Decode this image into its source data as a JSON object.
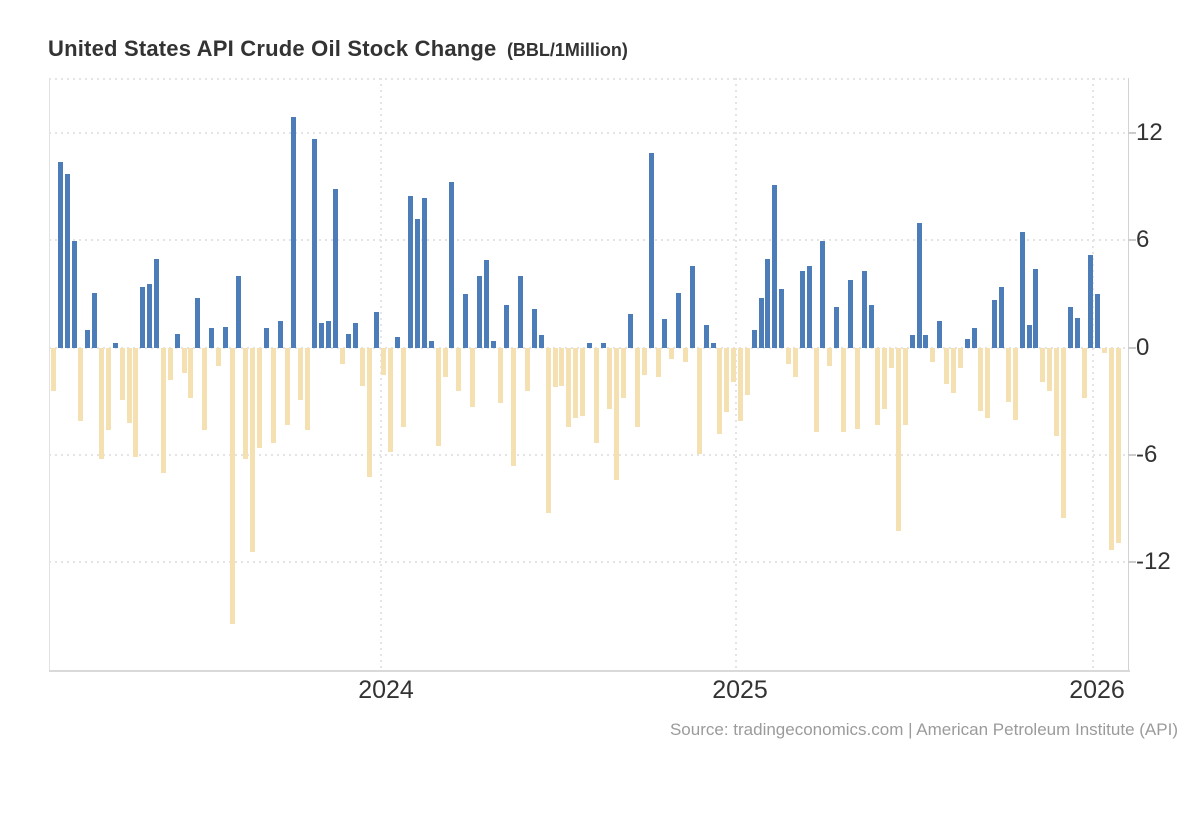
{
  "title": "United States API Crude Oil Stock Change",
  "title_suffix": "(BBL/1Million)",
  "source": "Source: tradingeconomics.com | American Petroleum Institute (API)",
  "colors": {
    "positive_bar": "#4d7db9",
    "negative_bar": "#f4e0b0",
    "grid": "#e4e4e4",
    "axis_text": "#333333",
    "source_text": "#9b9b9b"
  },
  "chart_data": {
    "type": "bar",
    "title": "United States API Crude Oil Stock Change (BBL/1Million)",
    "xlabel": "",
    "ylabel": "BBL/1Million",
    "frequency": "weekly",
    "ylim": [
      -16,
      14
    ],
    "grid": "dotted",
    "legend_position": "none",
    "y_ticks": [
      "12",
      "6",
      "0",
      "-6",
      "-12"
    ],
    "y_tick_values": [
      12,
      6,
      0,
      -6,
      -12
    ],
    "x_ticks": [
      "2024",
      "2025",
      "2026"
    ],
    "values": [
      -2.4,
      10.4,
      9.7,
      6.0,
      -4.1,
      1.0,
      3.1,
      -6.2,
      -4.6,
      0.3,
      -2.9,
      -4.2,
      -6.1,
      3.4,
      3.6,
      5.0,
      -7.0,
      -1.8,
      0.8,
      -1.4,
      -2.8,
      2.8,
      -4.6,
      1.1,
      -1.0,
      1.2,
      -15.4,
      4.0,
      -6.2,
      -11.4,
      -5.6,
      1.1,
      -5.3,
      1.5,
      -4.3,
      12.9,
      -2.9,
      -4.6,
      11.7,
      1.4,
      1.5,
      8.9,
      -0.9,
      0.8,
      1.4,
      -2.1,
      -7.2,
      2.0,
      -1.5,
      -5.8,
      0.6,
      -4.4,
      8.5,
      7.2,
      8.4,
      0.4,
      -5.5,
      -1.6,
      9.3,
      -2.4,
      3.0,
      -3.3,
      4.0,
      4.9,
      0.4,
      -3.1,
      2.4,
      -6.6,
      4.0,
      -2.4,
      2.2,
      0.7,
      -9.2,
      -2.2,
      -2.1,
      -4.4,
      -3.9,
      -3.8,
      0.3,
      -5.3,
      0.3,
      -3.4,
      -7.4,
      -2.8,
      1.9,
      -4.4,
      -1.5,
      10.9,
      -1.6,
      1.6,
      -0.6,
      3.1,
      -0.8,
      4.6,
      -5.9,
      1.3,
      0.3,
      -4.8,
      -3.6,
      -1.9,
      -4.1,
      -2.6,
      1.0,
      2.8,
      5.0,
      9.1,
      3.3,
      -0.9,
      -1.6,
      4.3,
      4.6,
      -4.7,
      6.0,
      -1.0,
      2.3,
      -4.7,
      3.8,
      -4.5,
      4.3,
      2.4,
      -4.3,
      -3.4,
      -1.1,
      -10.2,
      -4.3,
      0.7,
      7.0,
      0.7,
      -0.8,
      1.5,
      -2.0,
      -2.5,
      -1.1,
      0.5,
      1.1,
      -3.5,
      -3.9,
      2.7,
      3.4,
      -3.0,
      -4.0,
      6.5,
      1.3,
      4.4,
      -1.9,
      -2.4,
      -4.9,
      -9.5,
      2.3,
      1.7,
      -2.8,
      5.2,
      3.0,
      -0.3,
      -11.3,
      -10.9
    ]
  }
}
